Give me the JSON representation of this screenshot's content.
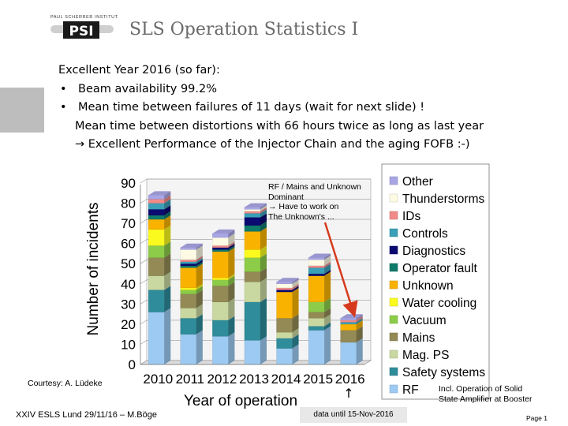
{
  "header": {
    "logo_top": "PAUL SCHERRER INSTITUT",
    "logo_text": "PSI",
    "title": "SLS Operation Statistics I"
  },
  "bullets": {
    "heading": "Excellent Year 2016 (so far):",
    "bullet_char": "•",
    "item1": "Beam availability 99.2%",
    "item2": "Mean time between failures of 11 days (wait for next slide) !",
    "line3": "Mean time between distortions with 66 hours twice as long as last year",
    "line4": "→ Excellent Performance of the Injector Chain and the aging FOFB :-)"
  },
  "notes": {
    "rf_line1": "RF / Mains and Unknown",
    "rf_line2": "Dominant",
    "rf_line3": "→ Have to work on",
    "rf_line4": "The Unknown's ...",
    "solid_line1": "Incl. Operation of Solid",
    "solid_line2": "State Amplifier at Booster",
    "courtesy": "Courtesy: A. Lüdeke",
    "data_until": "data until 15-Nov-2016"
  },
  "footer": {
    "left": "XXIV ESLS Lund 29/11/16 – M.Böge",
    "page": "Page 1"
  },
  "colors": {
    "title": "#6a6a6a",
    "arrow": "#d63a1e",
    "side_box": "#bdbdbd"
  },
  "chart_data": {
    "type": "bar",
    "stacked": true,
    "title": "",
    "xlabel": "Year of operation",
    "ylabel": "Number of incidents",
    "ylim": [
      0,
      90
    ],
    "yticks": [
      0,
      10,
      20,
      30,
      40,
      50,
      60,
      70,
      80,
      90
    ],
    "categories": [
      "2010",
      "2011",
      "2012",
      "2013",
      "2014",
      "2015",
      "2016"
    ],
    "legend_position": "right",
    "series": [
      {
        "name": "RF",
        "color": "#9ccaf2",
        "values": [
          26,
          15,
          14,
          12,
          8,
          17,
          11
        ]
      },
      {
        "name": "Safety systems",
        "color": "#2f8c9a",
        "values": [
          11,
          8,
          8,
          19,
          5,
          2,
          0
        ]
      },
      {
        "name": "Mag. PS",
        "color": "#c9d8a0",
        "values": [
          7,
          5,
          9,
          10,
          3,
          4,
          0
        ]
      },
      {
        "name": "Mains",
        "color": "#938a55",
        "values": [
          9,
          7,
          8,
          5,
          7,
          3,
          6
        ]
      },
      {
        "name": "Vacuum",
        "color": "#8ccc48",
        "values": [
          6,
          2,
          3,
          7,
          0,
          5,
          0
        ]
      },
      {
        "name": "Water cooling",
        "color": "#fafa1e",
        "values": [
          8,
          1,
          1,
          4,
          0,
          0,
          0
        ]
      },
      {
        "name": "Unknown",
        "color": "#f9b200",
        "values": [
          5,
          10,
          13,
          9,
          13,
          13,
          3
        ]
      },
      {
        "name": "Operator fault",
        "color": "#0f7a6a",
        "values": [
          2,
          1,
          1,
          3,
          0,
          0,
          0
        ]
      },
      {
        "name": "Diagnostics",
        "color": "#0a0a70",
        "values": [
          3,
          1,
          1,
          4,
          1,
          1,
          0
        ]
      },
      {
        "name": "Controls",
        "color": "#3aa0b8",
        "values": [
          3,
          1,
          0,
          2,
          0,
          3,
          1
        ]
      },
      {
        "name": "IDs",
        "color": "#f08a88",
        "values": [
          2,
          1,
          1,
          1,
          1,
          1,
          1
        ]
      },
      {
        "name": "Thunderstorms",
        "color": "#fdfbe4",
        "values": [
          0,
          5,
          4,
          1,
          2,
          3,
          0
        ]
      },
      {
        "name": "Other",
        "color": "#a9a6e6",
        "values": [
          2,
          1,
          2,
          1,
          1,
          1,
          1
        ]
      }
    ],
    "annotation_arrow_label": "↑"
  }
}
